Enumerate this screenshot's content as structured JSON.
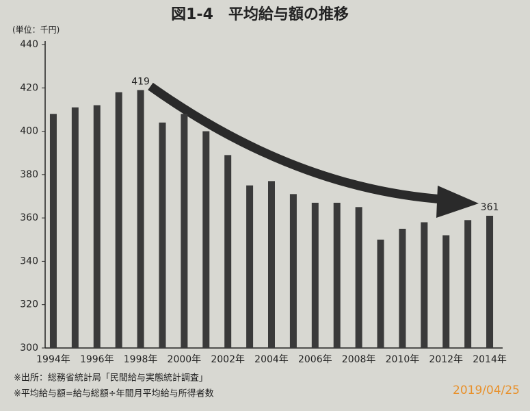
{
  "chart_data": {
    "type": "bar",
    "title": "図1-4　平均給与額の推移",
    "unit_label": "(単位：千円)",
    "categories": [
      "1994年",
      null,
      "1996年",
      null,
      "1998年",
      null,
      "2000年",
      null,
      "2002年",
      null,
      "2004年",
      null,
      "2006年",
      null,
      "2008年",
      null,
      "2010年",
      null,
      "2012年",
      null,
      "2014年"
    ],
    "values": [
      408,
      411,
      412,
      418,
      419,
      404,
      408,
      400,
      389,
      375,
      377,
      371,
      367,
      367,
      365,
      350,
      355,
      358,
      352,
      359,
      361
    ],
    "value_labels": [
      null,
      null,
      null,
      null,
      "419",
      null,
      null,
      null,
      null,
      null,
      null,
      null,
      null,
      null,
      null,
      null,
      null,
      null,
      null,
      null,
      "361"
    ],
    "color": "#3a3a3a",
    "ylim": [
      300,
      440
    ],
    "yticks": [
      300,
      320,
      340,
      360,
      380,
      400,
      420,
      440
    ],
    "grid": false,
    "notes": [
      "※出所：総務省統計局「民間給与実態統計調査」",
      "※平均給与額=給与総額÷年間月平均給与所得者数"
    ],
    "stamp": "2019/04/25"
  }
}
